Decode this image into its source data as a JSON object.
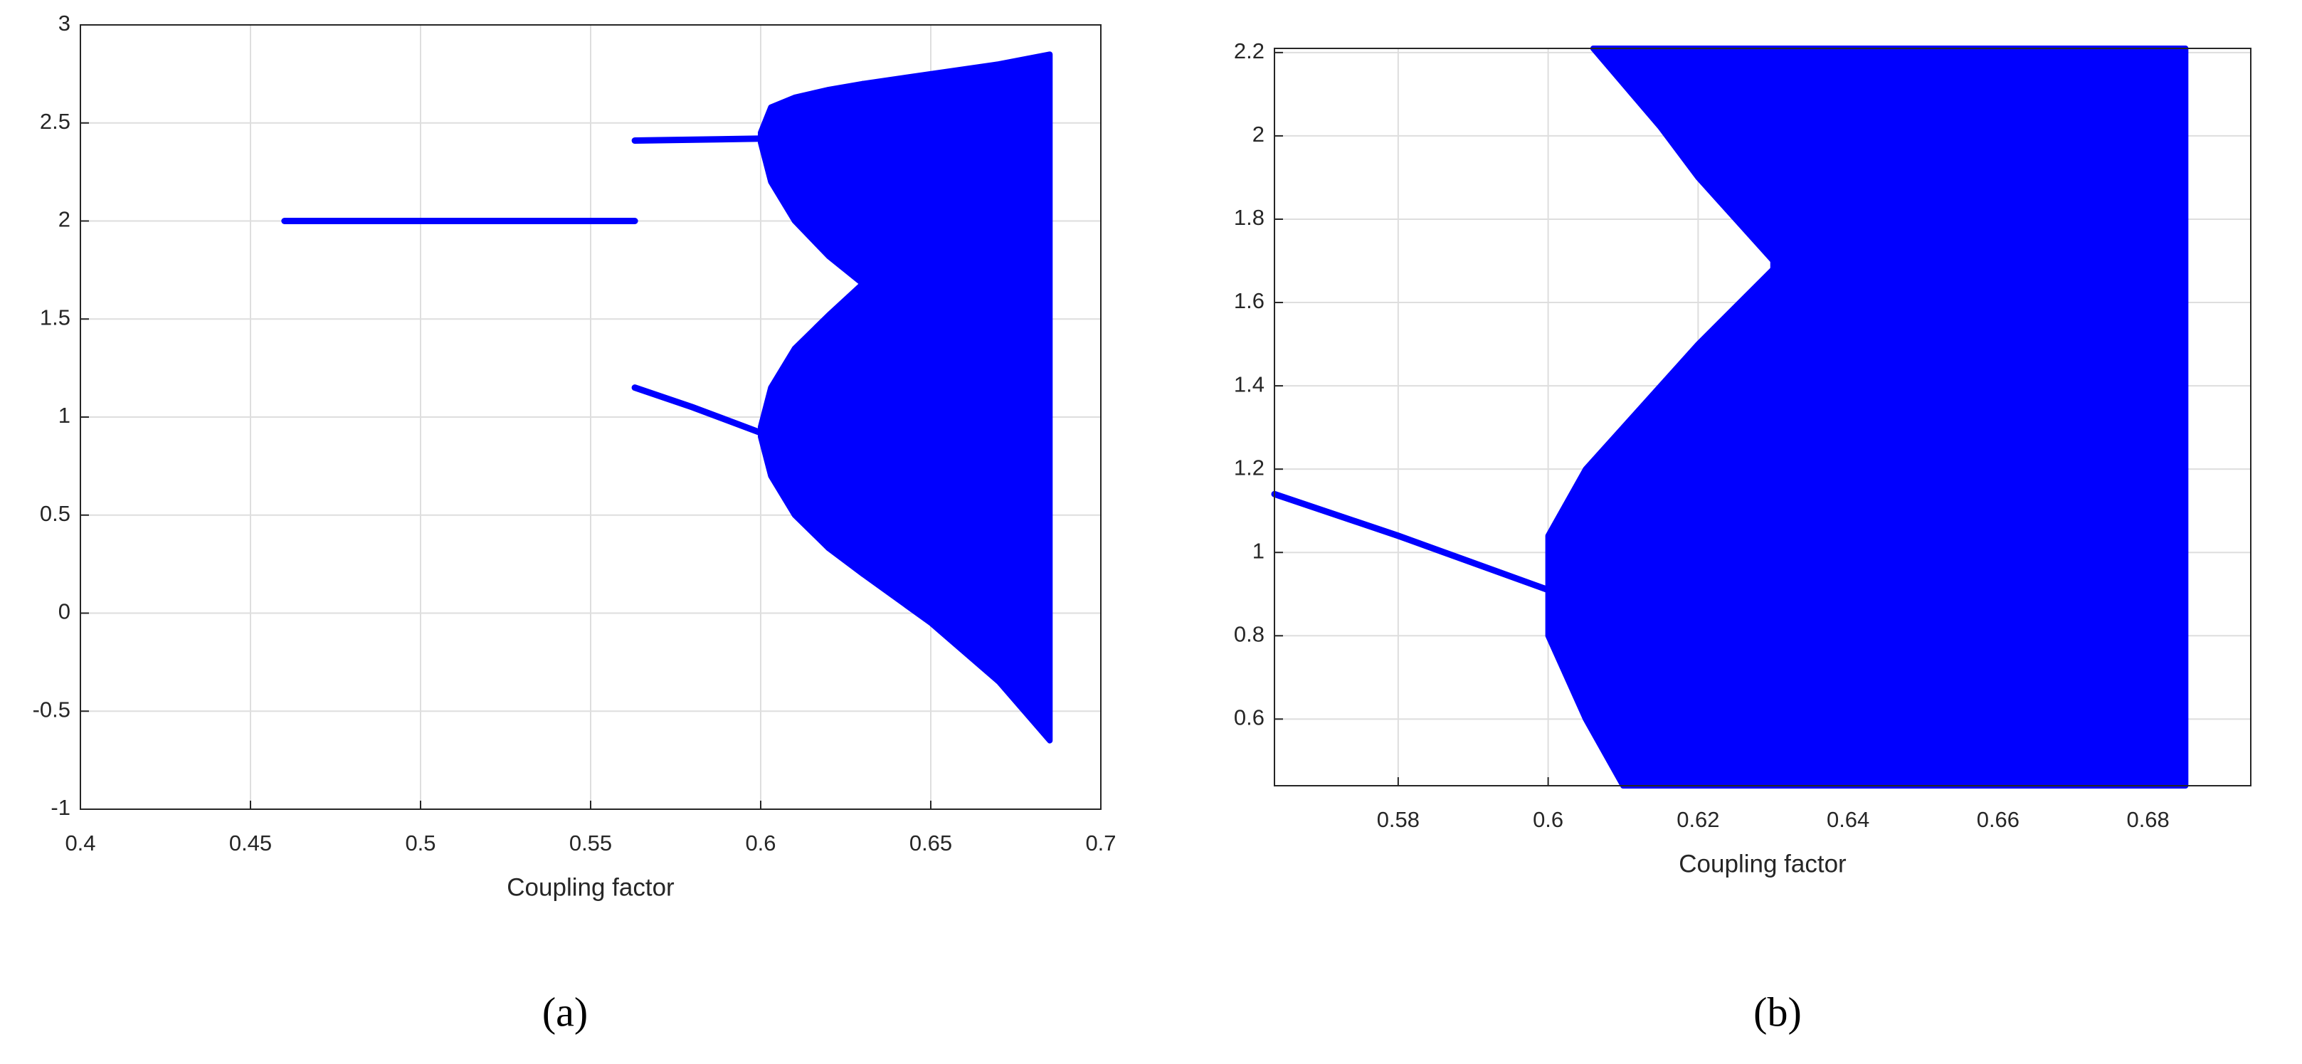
{
  "chart_data": [
    {
      "type": "range",
      "x_label": "Coupling factor",
      "caption": "(a)",
      "xlim": [
        0.4,
        0.7
      ],
      "xticks": [
        0.4,
        0.45,
        0.5,
        0.55,
        0.6,
        0.65,
        0.7
      ],
      "ylim": [
        -1,
        3
      ],
      "yticks": [
        -1,
        -0.5,
        0,
        0.5,
        1,
        1.5,
        2,
        2.5,
        3
      ],
      "grid": true,
      "series": [
        {
          "color": "#0000ff",
          "x": [
            0.46,
            0.563
          ],
          "y": [
            2.0,
            2.0
          ]
        },
        {
          "color": "#0000ff",
          "x": [
            0.563,
            0.6
          ],
          "y": [
            2.41,
            2.42
          ]
        },
        {
          "color": "#0000ff",
          "x": [
            0.563,
            0.58,
            0.6
          ],
          "y": [
            1.15,
            1.05,
            0.92
          ]
        },
        {
          "color": "#0000ff",
          "x": [
            0.6,
            0.603,
            0.61,
            0.62,
            0.63
          ],
          "low": [
            2.4,
            2.2,
            2.0,
            1.82,
            1.68
          ],
          "high": [
            2.45,
            2.58,
            2.63,
            2.67,
            2.7
          ]
        },
        {
          "color": "#0000ff",
          "x": [
            0.6,
            0.603,
            0.61,
            0.62,
            0.63
          ],
          "low": [
            0.9,
            0.7,
            0.5,
            0.33,
            0.2
          ],
          "high": [
            0.95,
            1.15,
            1.35,
            1.52,
            1.68
          ]
        },
        {
          "color": "#0000ff",
          "x": [
            0.63,
            0.65,
            0.67,
            0.685
          ],
          "low": [
            0.2,
            -0.05,
            -0.35,
            -0.65
          ],
          "high": [
            2.7,
            2.75,
            2.8,
            2.85
          ]
        }
      ]
    },
    {
      "type": "range",
      "x_label": "Coupling factor",
      "caption": "(b)",
      "xlim": [
        0.5635,
        0.6937
      ],
      "xticks": [
        0.58,
        0.6,
        0.62,
        0.64,
        0.66,
        0.68
      ],
      "ylim": [
        0.44,
        2.21
      ],
      "yticks": [
        0.6,
        0.8,
        1,
        1.2,
        1.4,
        1.6,
        1.8,
        2,
        2.2
      ],
      "grid": true,
      "series": [
        {
          "color": "#0000ff",
          "x": [
            0.5635,
            0.58,
            0.6
          ],
          "y": [
            1.14,
            1.04,
            0.91
          ]
        },
        {
          "color": "#0000ff",
          "x": [
            0.606,
            0.615,
            0.62,
            0.63
          ],
          "low": [
            2.21,
            2.02,
            1.9,
            1.7
          ],
          "high": [
            2.21,
            2.21,
            2.21,
            2.21
          ]
        },
        {
          "color": "#0000ff",
          "x": [
            0.6,
            0.605,
            0.61,
            0.62,
            0.63
          ],
          "low": [
            0.8,
            0.6,
            0.44,
            0.44,
            0.44
          ],
          "high": [
            1.04,
            1.2,
            1.3,
            1.5,
            1.68
          ]
        },
        {
          "color": "#0000ff",
          "x": [
            0.63,
            0.685
          ],
          "low": [
            0.44,
            0.44
          ],
          "high": [
            2.21,
            2.21
          ]
        }
      ]
    }
  ]
}
